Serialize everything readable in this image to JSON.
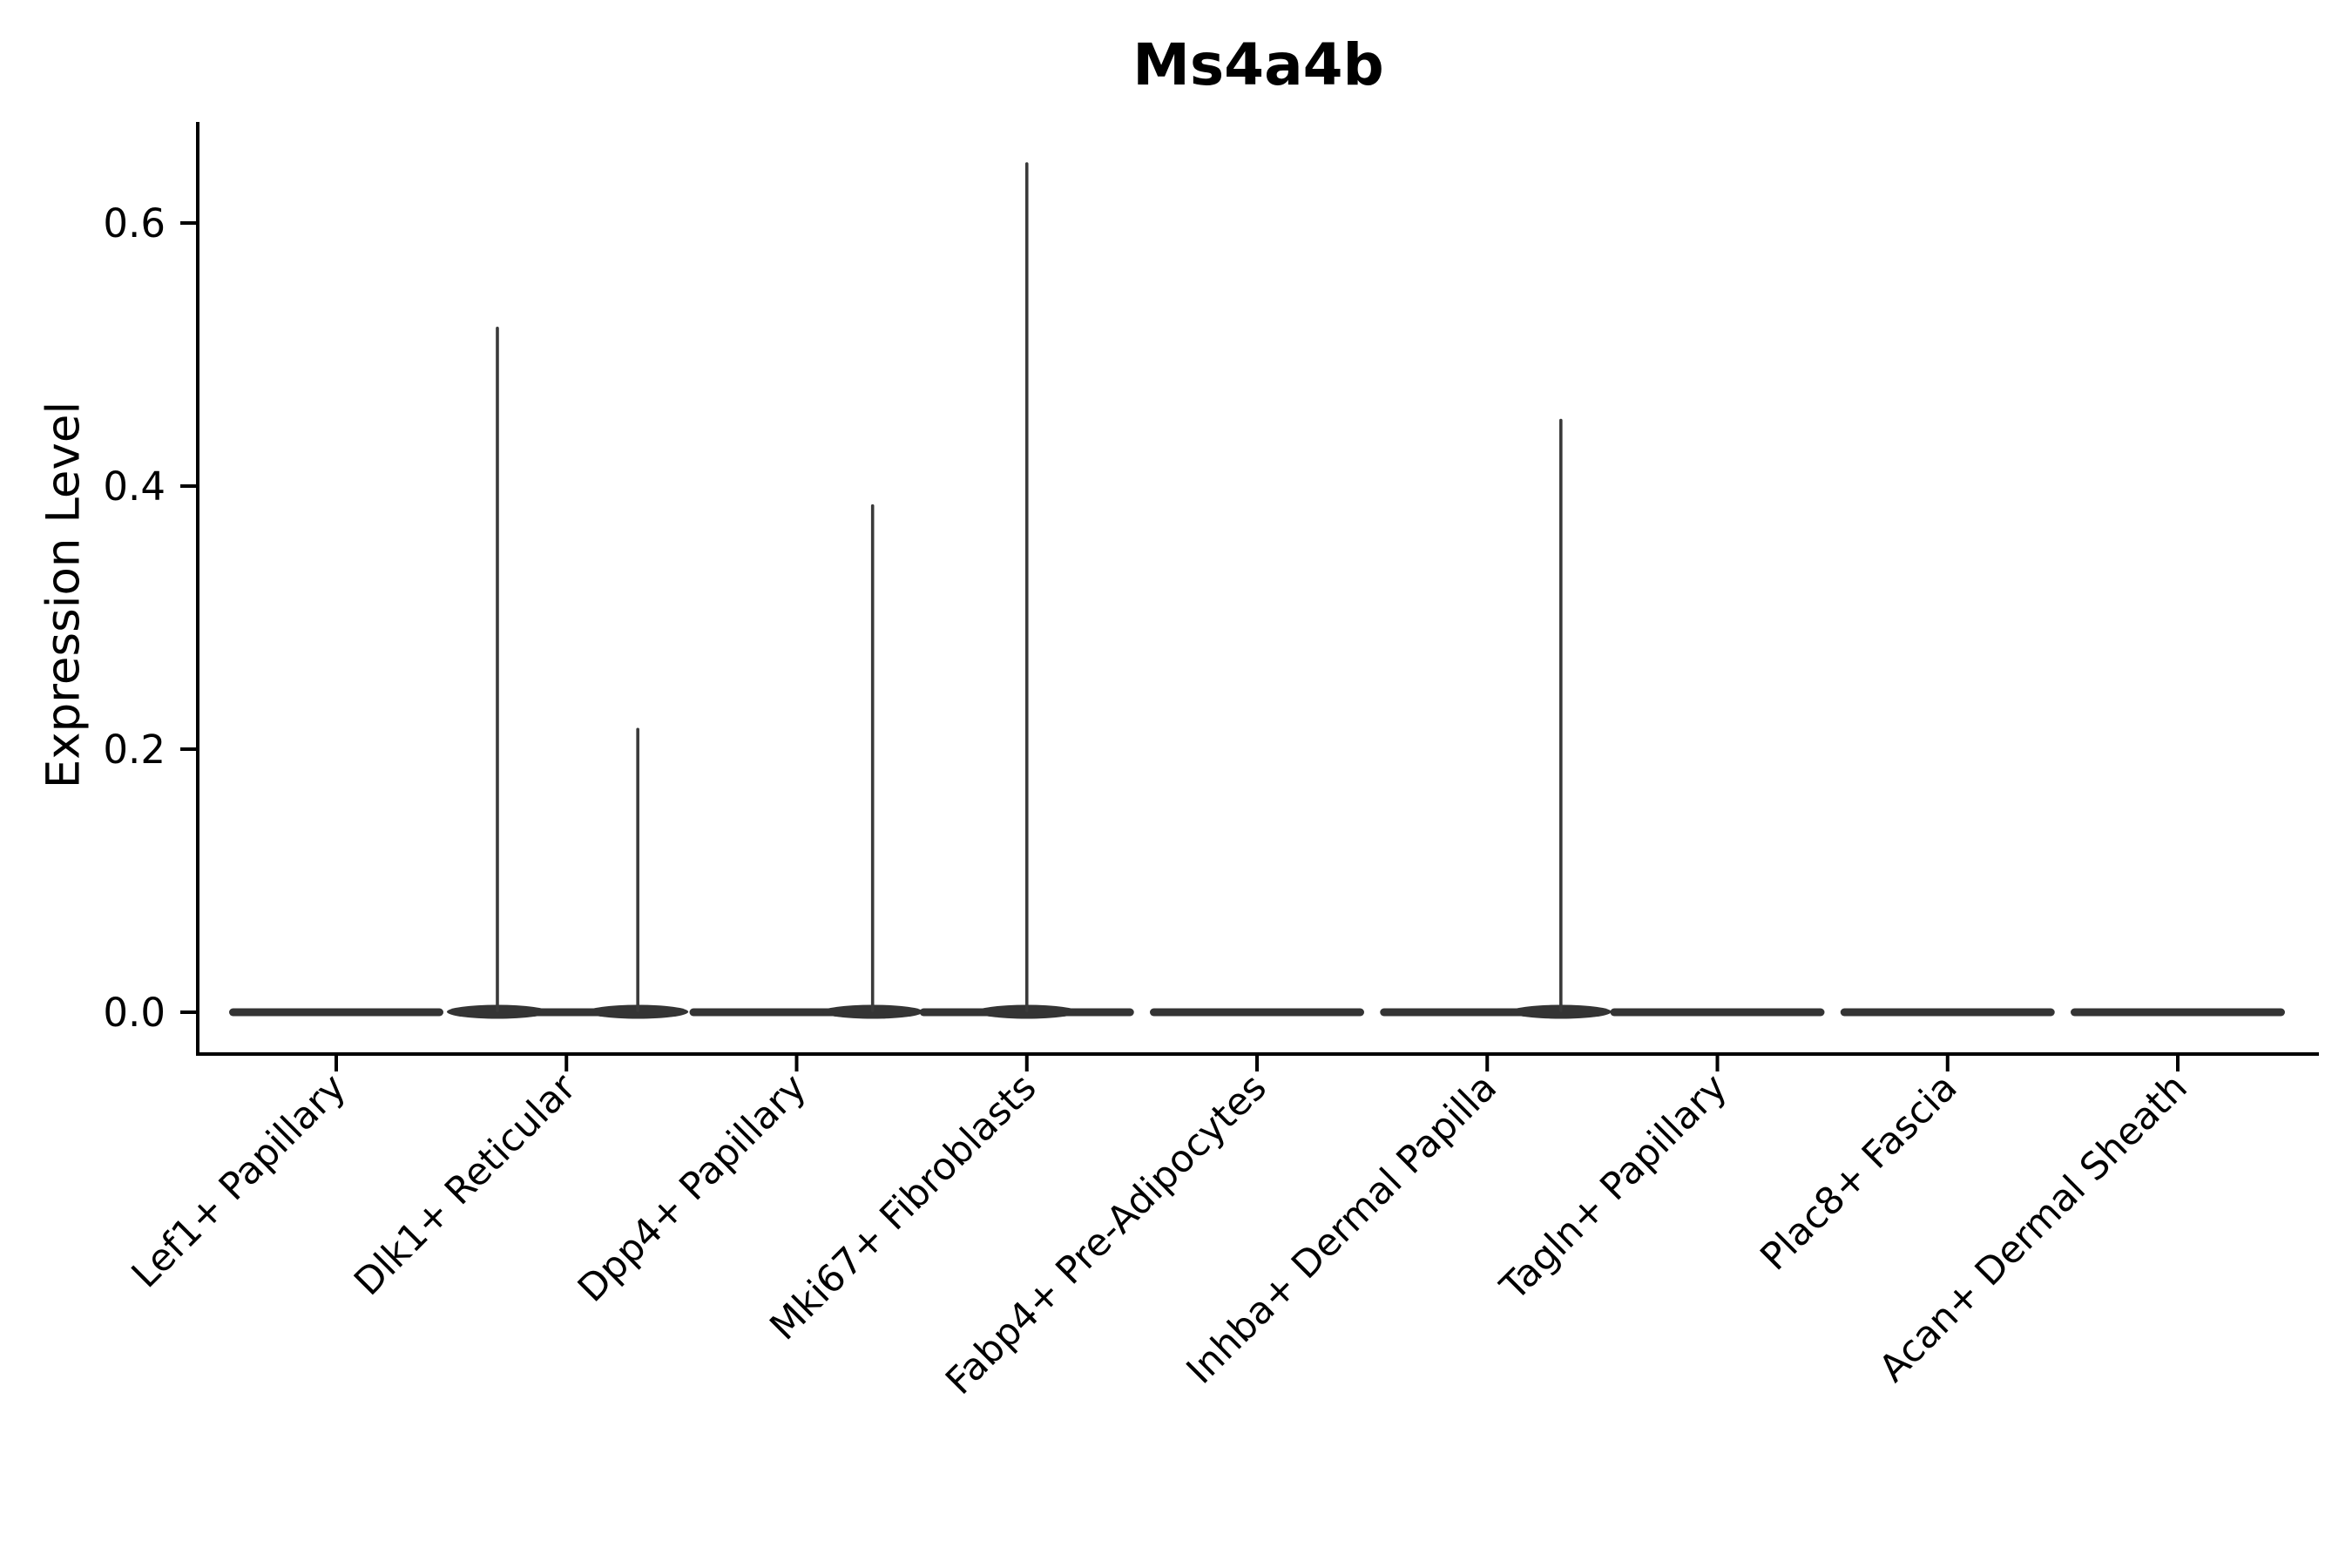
{
  "chart_data": {
    "type": "violin",
    "title": "Ms4a4b",
    "ylabel": "Expression Level",
    "xlabel": "",
    "categories": [
      "Lef1+ Papillary",
      "Dlk1+ Reticular",
      "Dpp4+ Papillary",
      "Mki67+ Fibroblasts",
      "Fabp4+ Pre-Adipocytes",
      "Inhba+ Dermal Papilla",
      "Tagln+ Papillary",
      "Plac8+ Fascia",
      "Acan+ Dermal Sheath"
    ],
    "ytick_values": [
      0.0,
      0.2,
      0.4,
      0.6
    ],
    "ytick_labels": [
      "0.0",
      "0.2",
      "0.4",
      "0.6"
    ],
    "ylim": [
      -0.032,
      0.677
    ],
    "grid": false,
    "legend": null,
    "x_tick_rotation": 45,
    "series": [
      {
        "name": "Lef1+ Papillary",
        "body_value": 0.0,
        "spikes": []
      },
      {
        "name": "Dlk1+ Reticular",
        "body_value": 0.0,
        "spikes": [
          {
            "pos": -0.3,
            "value": 0.52
          },
          {
            "pos": 0.31,
            "value": 0.215
          }
        ]
      },
      {
        "name": "Dpp4+ Papillary",
        "body_value": 0.0,
        "spikes": [
          {
            "pos": 0.33,
            "value": 0.385
          }
        ]
      },
      {
        "name": "Mki67+ Fibroblasts",
        "body_value": 0.0,
        "spikes": [
          {
            "pos": 0.0,
            "value": 0.645
          }
        ]
      },
      {
        "name": "Fabp4+ Pre-Adipocytes",
        "body_value": 0.0,
        "spikes": []
      },
      {
        "name": "Inhba+ Dermal Papilla",
        "body_value": 0.0,
        "spikes": [
          {
            "pos": 0.32,
            "value": 0.45
          }
        ]
      },
      {
        "name": "Tagln+ Papillary",
        "body_value": 0.0,
        "spikes": []
      },
      {
        "name": "Plac8+ Fascia",
        "body_value": 0.0,
        "spikes": []
      },
      {
        "name": "Acan+ Dermal Sheath",
        "body_value": 0.0,
        "spikes": []
      }
    ],
    "colors": {
      "violin_body": "#343434",
      "spike": "#3a3a3a",
      "axis": "#000000",
      "text": "#000000",
      "background": "#ffffff"
    }
  }
}
